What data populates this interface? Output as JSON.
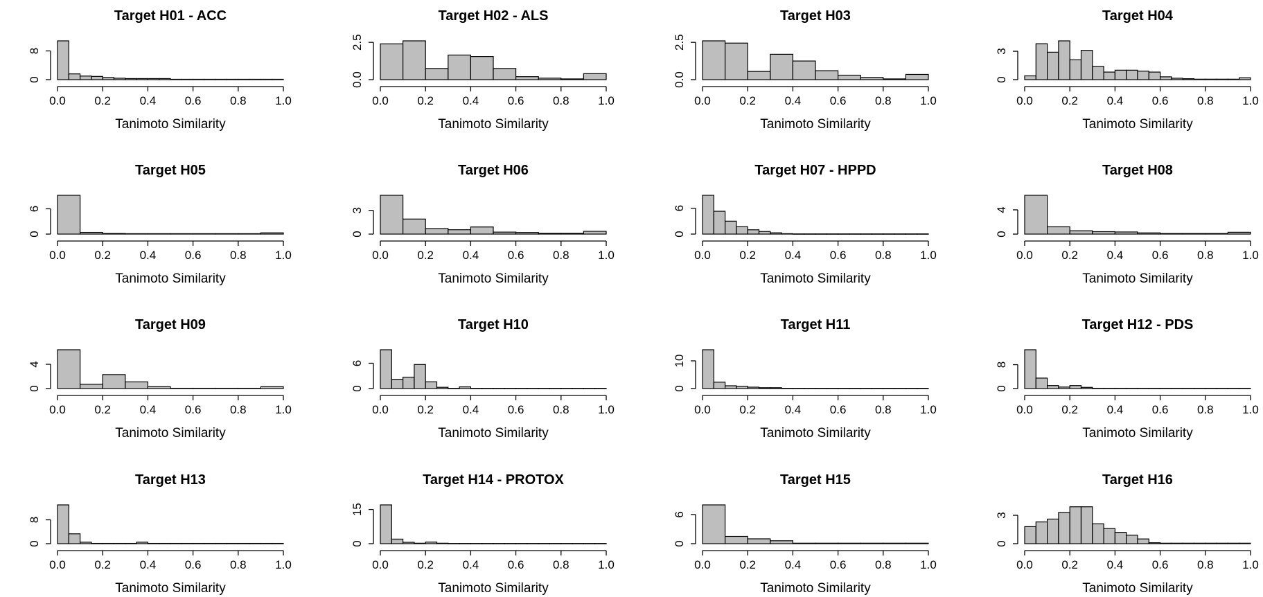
{
  "chart_data": [
    {
      "type": "bar",
      "title": "Target H01 - ACC",
      "xlabel": "Tanimoto Similarity",
      "ylabel": "",
      "xlim": [
        0,
        1
      ],
      "xticks": [
        0,
        0.2,
        0.4,
        0.6,
        0.8,
        1
      ],
      "xtick_labels": [
        "0.0",
        "0.2",
        "0.4",
        "0.6",
        "0.8",
        "1.0"
      ],
      "yticks": [
        0,
        8
      ],
      "ytick_labels": [
        "0",
        "8"
      ],
      "ymax": 10.8,
      "bin_width": 0.05,
      "values": [
        10.8,
        1.6,
        1.0,
        0.9,
        0.6,
        0.4,
        0.3,
        0.3,
        0.3,
        0.3,
        0.1,
        0.1,
        0.1,
        0.1,
        0.1,
        0.1,
        0.1,
        0.1,
        0.1,
        0.1
      ]
    },
    {
      "type": "bar",
      "title": "Target H02 - ALS",
      "xlabel": "Tanimoto Similarity",
      "ylabel": "",
      "xlim": [
        0,
        1
      ],
      "xticks": [
        0,
        0.2,
        0.4,
        0.6,
        0.8,
        1
      ],
      "xtick_labels": [
        "0.0",
        "0.2",
        "0.4",
        "0.6",
        "0.8",
        "1.0"
      ],
      "yticks": [
        0,
        2.5
      ],
      "ytick_labels": [
        "0.0",
        "2.5"
      ],
      "ymax": 2.6,
      "bin_width": 0.1,
      "values": [
        2.4,
        2.6,
        0.75,
        1.65,
        1.55,
        0.75,
        0.2,
        0.1,
        0.05,
        0.4
      ]
    },
    {
      "type": "bar",
      "title": "Target H03",
      "xlabel": "Tanimoto Similarity",
      "ylabel": "",
      "xlim": [
        0,
        1
      ],
      "xticks": [
        0,
        0.2,
        0.4,
        0.6,
        0.8,
        1
      ],
      "xtick_labels": [
        "0.0",
        "0.2",
        "0.4",
        "0.6",
        "0.8",
        "1.0"
      ],
      "yticks": [
        0,
        2.5
      ],
      "ytick_labels": [
        "0.0",
        "2.5"
      ],
      "ymax": 2.6,
      "bin_width": 0.1,
      "values": [
        2.6,
        2.45,
        0.55,
        1.7,
        1.25,
        0.6,
        0.3,
        0.15,
        0.05,
        0.35
      ]
    },
    {
      "type": "bar",
      "title": "Target H04",
      "xlabel": "Tanimoto Similarity",
      "ylabel": "",
      "xlim": [
        0,
        1
      ],
      "xticks": [
        0,
        0.2,
        0.4,
        0.6,
        0.8,
        1
      ],
      "xtick_labels": [
        "0.0",
        "0.2",
        "0.4",
        "0.6",
        "0.8",
        "1.0"
      ],
      "yticks": [
        0,
        3
      ],
      "ytick_labels": [
        "0",
        "3"
      ],
      "ymax": 4.1,
      "bin_width": 0.05,
      "values": [
        0.4,
        3.8,
        2.9,
        4.1,
        2.1,
        3.1,
        1.4,
        0.8,
        1.0,
        1.0,
        0.9,
        0.8,
        0.3,
        0.15,
        0.1,
        0.05,
        0.05,
        0.05,
        0.05,
        0.2
      ]
    },
    {
      "type": "bar",
      "title": "Target H05",
      "xlabel": "Tanimoto Similarity",
      "ylabel": "",
      "xlim": [
        0,
        1
      ],
      "xticks": [
        0,
        0.2,
        0.4,
        0.6,
        0.8,
        1
      ],
      "xtick_labels": [
        "0.0",
        "0.2",
        "0.4",
        "0.6",
        "0.8",
        "1.0"
      ],
      "yticks": [
        0,
        6
      ],
      "ytick_labels": [
        "0",
        "6"
      ],
      "ymax": 9.2,
      "bin_width": 0.1,
      "values": [
        9.2,
        0.4,
        0.15,
        0.1,
        0.1,
        0.1,
        0.1,
        0.1,
        0.1,
        0.3
      ]
    },
    {
      "type": "bar",
      "title": "Target H06",
      "xlabel": "Tanimoto Similarity",
      "ylabel": "",
      "xlim": [
        0,
        1
      ],
      "xticks": [
        0,
        0.2,
        0.4,
        0.6,
        0.8,
        1
      ],
      "xtick_labels": [
        "0.0",
        "0.2",
        "0.4",
        "0.6",
        "0.8",
        "1.0"
      ],
      "yticks": [
        0,
        3
      ],
      "ytick_labels": [
        "0",
        "3"
      ],
      "ymax": 4.9,
      "bin_width": 0.1,
      "values": [
        4.9,
        1.9,
        0.7,
        0.55,
        0.9,
        0.25,
        0.2,
        0.1,
        0.1,
        0.35
      ]
    },
    {
      "type": "bar",
      "title": "Target H07 - HPPD",
      "xlabel": "Tanimoto Similarity",
      "ylabel": "",
      "xlim": [
        0,
        1
      ],
      "xticks": [
        0,
        0.2,
        0.4,
        0.6,
        0.8,
        1
      ],
      "xtick_labels": [
        "0.0",
        "0.2",
        "0.4",
        "0.6",
        "0.8",
        "1.0"
      ],
      "yticks": [
        0,
        6
      ],
      "ytick_labels": [
        "0",
        "6"
      ],
      "ymax": 9.0,
      "bin_width": 0.05,
      "values": [
        9.0,
        5.3,
        3.0,
        1.7,
        1.0,
        0.6,
        0.3,
        0.1,
        0.05,
        0.05,
        0.05,
        0.05,
        0.05,
        0.05,
        0.05,
        0.05,
        0.05,
        0.05,
        0.05,
        0.05
      ]
    },
    {
      "type": "bar",
      "title": "Target H08",
      "xlabel": "Tanimoto Similarity",
      "ylabel": "",
      "xlim": [
        0,
        1
      ],
      "xticks": [
        0,
        0.2,
        0.4,
        0.6,
        0.8,
        1
      ],
      "xtick_labels": [
        "0.0",
        "0.2",
        "0.4",
        "0.6",
        "0.8",
        "1.0"
      ],
      "yticks": [
        0,
        4
      ],
      "ytick_labels": [
        "0",
        "4"
      ],
      "ymax": 6.4,
      "bin_width": 0.1,
      "values": [
        6.4,
        1.2,
        0.55,
        0.4,
        0.35,
        0.2,
        0.1,
        0.1,
        0.1,
        0.3
      ]
    },
    {
      "type": "bar",
      "title": "Target H09",
      "xlabel": "Tanimoto Similarity",
      "ylabel": "",
      "xlim": [
        0,
        1
      ],
      "xticks": [
        0,
        0.2,
        0.4,
        0.6,
        0.8,
        1
      ],
      "xtick_labels": [
        "0.0",
        "0.2",
        "0.4",
        "0.6",
        "0.8",
        "1.0"
      ],
      "yticks": [
        0,
        4
      ],
      "ytick_labels": [
        "0",
        "4"
      ],
      "ymax": 6.4,
      "bin_width": 0.1,
      "values": [
        6.4,
        0.7,
        2.3,
        1.1,
        0.3,
        0.05,
        0.05,
        0.05,
        0.05,
        0.3
      ]
    },
    {
      "type": "bar",
      "title": "Target H10",
      "xlabel": "Tanimoto Similarity",
      "ylabel": "",
      "xlim": [
        0,
        1
      ],
      "xticks": [
        0,
        0.2,
        0.4,
        0.6,
        0.8,
        1
      ],
      "xtick_labels": [
        "0.0",
        "0.2",
        "0.4",
        "0.6",
        "0.8",
        "1.0"
      ],
      "yticks": [
        0,
        6
      ],
      "ytick_labels": [
        "0",
        "6"
      ],
      "ymax": 9.2,
      "bin_width": 0.05,
      "values": [
        9.2,
        2.2,
        2.7,
        5.7,
        1.6,
        0.3,
        0.05,
        0.4,
        0.05,
        0.05,
        0.05,
        0.05,
        0.05,
        0.05,
        0.05,
        0.05,
        0.05,
        0.05,
        0.05,
        0.05
      ]
    },
    {
      "type": "bar",
      "title": "Target H11",
      "xlabel": "Tanimoto Similarity",
      "ylabel": "",
      "xlim": [
        0,
        1
      ],
      "xticks": [
        0,
        0.2,
        0.4,
        0.6,
        0.8,
        1
      ],
      "xtick_labels": [
        "0.0",
        "0.2",
        "0.4",
        "0.6",
        "0.8",
        "1.0"
      ],
      "yticks": [
        0,
        10
      ],
      "ytick_labels": [
        "0",
        "10"
      ],
      "ymax": 14.0,
      "bin_width": 0.05,
      "values": [
        14.0,
        2.3,
        1.0,
        0.8,
        0.5,
        0.3,
        0.3,
        0.1,
        0.1,
        0.1,
        0.1,
        0.1,
        0.1,
        0.1,
        0.1,
        0.1,
        0.1,
        0.1,
        0.1,
        0.1
      ]
    },
    {
      "type": "bar",
      "title": "Target H12 - PDS",
      "xlabel": "Tanimoto Similarity",
      "ylabel": "",
      "xlim": [
        0,
        1
      ],
      "xticks": [
        0,
        0.2,
        0.4,
        0.6,
        0.8,
        1
      ],
      "xtick_labels": [
        "0.0",
        "0.2",
        "0.4",
        "0.6",
        "0.8",
        "1.0"
      ],
      "yticks": [
        0,
        8
      ],
      "ytick_labels": [
        "0",
        "8"
      ],
      "ymax": 13.0,
      "bin_width": 0.05,
      "values": [
        13.0,
        3.5,
        1.0,
        0.5,
        1.0,
        0.4,
        0.1,
        0.1,
        0.1,
        0.1,
        0.1,
        0.1,
        0.1,
        0.1,
        0.1,
        0.1,
        0.1,
        0.1,
        0.1,
        0.1
      ]
    },
    {
      "type": "bar",
      "title": "Target H13",
      "xlabel": "Tanimoto Similarity",
      "ylabel": "",
      "xlim": [
        0,
        1
      ],
      "xticks": [
        0,
        0.2,
        0.4,
        0.6,
        0.8,
        1
      ],
      "xtick_labels": [
        "0.0",
        "0.2",
        "0.4",
        "0.6",
        "0.8",
        "1.0"
      ],
      "yticks": [
        0,
        8
      ],
      "ytick_labels": [
        "0",
        "8"
      ],
      "ymax": 13.0,
      "bin_width": 0.05,
      "values": [
        13.0,
        3.3,
        0.5,
        0.1,
        0.1,
        0.1,
        0.1,
        0.5,
        0.1,
        0.1,
        0.1,
        0.1,
        0.1,
        0.1,
        0.1,
        0.1,
        0.1,
        0.1,
        0.1,
        0.1
      ]
    },
    {
      "type": "bar",
      "title": "Target H14 - PROTOX",
      "xlabel": "Tanimoto Similarity",
      "ylabel": "",
      "xlim": [
        0,
        1
      ],
      "xticks": [
        0,
        0.2,
        0.4,
        0.6,
        0.8,
        1
      ],
      "xtick_labels": [
        "0.0",
        "0.2",
        "0.4",
        "0.6",
        "0.8",
        "1.0"
      ],
      "yticks": [
        0,
        15
      ],
      "ytick_labels": [
        "0",
        "15"
      ],
      "ymax": 17.0,
      "bin_width": 0.05,
      "values": [
        17.0,
        2.0,
        0.6,
        0.2,
        0.7,
        0.2,
        0.1,
        0.1,
        0.1,
        0.1,
        0.1,
        0.1,
        0.1,
        0.1,
        0.1,
        0.1,
        0.1,
        0.1,
        0.1,
        0.1
      ]
    },
    {
      "type": "bar",
      "title": "Target H15",
      "xlabel": "Tanimoto Similarity",
      "ylabel": "",
      "xlim": [
        0,
        1
      ],
      "xticks": [
        0,
        0.2,
        0.4,
        0.6,
        0.8,
        1
      ],
      "xtick_labels": [
        "0.0",
        "0.2",
        "0.4",
        "0.6",
        "0.8",
        "1.0"
      ],
      "yticks": [
        0,
        6
      ],
      "ytick_labels": [
        "0",
        "6"
      ],
      "ymax": 8.0,
      "bin_width": 0.1,
      "values": [
        8.0,
        1.5,
        1.0,
        0.6,
        0.1,
        0.1,
        0.1,
        0.1,
        0.1,
        0.1
      ]
    },
    {
      "type": "bar",
      "title": "Target H16",
      "xlabel": "Tanimoto Similarity",
      "ylabel": "",
      "xlim": [
        0,
        1
      ],
      "xticks": [
        0,
        0.2,
        0.4,
        0.6,
        0.8,
        1
      ],
      "xtick_labels": [
        "0.0",
        "0.2",
        "0.4",
        "0.6",
        "0.8",
        "1.0"
      ],
      "yticks": [
        0,
        3
      ],
      "ytick_labels": [
        "0",
        "3"
      ],
      "ymax": 4.1,
      "bin_width": 0.05,
      "values": [
        1.8,
        2.3,
        2.6,
        3.3,
        3.9,
        3.9,
        2.1,
        1.6,
        1.2,
        0.9,
        0.5,
        0.1,
        0.05,
        0.05,
        0.05,
        0.05,
        0.05,
        0.05,
        0.05,
        0.05
      ]
    }
  ],
  "style": {
    "bar_fill": "#bebebe",
    "bar_stroke": "#000000",
    "axis_color": "#000000"
  }
}
